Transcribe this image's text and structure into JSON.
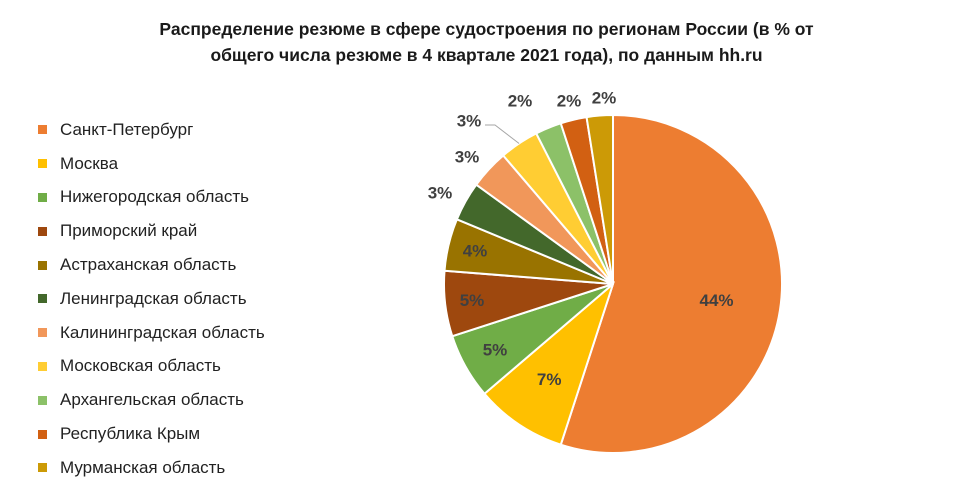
{
  "chart_data": {
    "type": "pie",
    "title": "Распределение резюме в сфере судостроения по регионам России (в % от общего числа резюме в 4 квартале 2021 года), по данным hh.ru",
    "title_lines": [
      "Распределение резюме в сфере судостроения по регионам России (в % от",
      "общего числа резюме в 4 квартале 2021 года), по данным hh.ru"
    ],
    "legend_position": "left",
    "slices": [
      {
        "name": "Санкт-Петербург",
        "value": 44,
        "label": "44%",
        "color": "#ED7D31"
      },
      {
        "name": "Москва",
        "value": 7,
        "label": "7%",
        "color": "#FFC000"
      },
      {
        "name": "Нижегородская область",
        "value": 5,
        "label": "5%",
        "color": "#70AD47"
      },
      {
        "name": "Приморский край",
        "value": 5,
        "label": "5%",
        "color": "#9E480E"
      },
      {
        "name": "Астраханская область",
        "value": 4,
        "label": "4%",
        "color": "#997300"
      },
      {
        "name": "Ленинградская область",
        "value": 3,
        "label": "3%",
        "color": "#43682B"
      },
      {
        "name": "Калининградская область",
        "value": 3,
        "label": "3%",
        "color": "#F1975A"
      },
      {
        "name": "Московская область",
        "value": 3,
        "label": "3%",
        "color": "#FFCD33"
      },
      {
        "name": "Архангельская область",
        "value": 2,
        "label": "2%",
        "color": "#8CC168"
      },
      {
        "name": "Республика Крым",
        "value": 2,
        "label": "2%",
        "color": "#D26012"
      },
      {
        "name": "Мурманская область",
        "value": 2,
        "label": "2%",
        "color": "#CC9A06"
      }
    ]
  }
}
